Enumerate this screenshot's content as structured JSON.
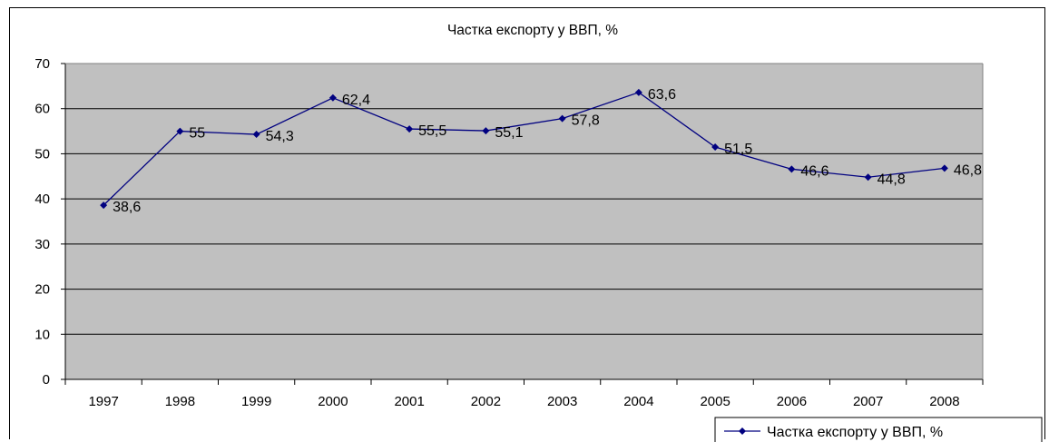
{
  "chart_data": {
    "type": "line",
    "title": "Частка експорту у ВВП, %",
    "categories": [
      "1997",
      "1998",
      "1999",
      "2000",
      "2001",
      "2002",
      "2003",
      "2004",
      "2005",
      "2006",
      "2007",
      "2008"
    ],
    "series": [
      {
        "name": "Частка експорту у ВВП, %",
        "values": [
          38.6,
          55,
          54.3,
          62.4,
          55.5,
          55.1,
          57.8,
          63.6,
          51.5,
          46.6,
          44.8,
          46.8
        ],
        "value_labels": [
          "38,6",
          "55",
          "54,3",
          "62,4",
          "55,5",
          "55,1",
          "57,8",
          "63,6",
          "51,5",
          "46,6",
          "44,8",
          "46,8"
        ]
      }
    ],
    "ylim": [
      0,
      70
    ],
    "yticks": [
      0,
      10,
      20,
      30,
      40,
      50,
      60,
      70
    ],
    "grid": true,
    "legend": "bottom-right",
    "colors": {
      "line": "#000080",
      "plot_bg": "#c0c0c0",
      "grid": "#000000"
    }
  }
}
